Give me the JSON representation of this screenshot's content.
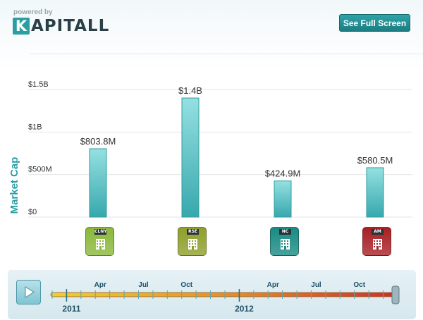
{
  "header": {
    "powered_by": "powered by",
    "logo_first": "K",
    "logo_rest": "APITALL",
    "fullscreen_button": "See Full Screen"
  },
  "chart_data": {
    "type": "bar",
    "ylabel": "Market Cap",
    "ylim": [
      0,
      1500000000
    ],
    "yticks": [
      {
        "value": 0,
        "label": "$0"
      },
      {
        "value": 500000000,
        "label": "$500M"
      },
      {
        "value": 1000000000,
        "label": "$1B"
      },
      {
        "value": 1500000000,
        "label": "$1.5B"
      }
    ],
    "grid": true,
    "series": [
      {
        "values": [
          803800000,
          1400000000,
          424900000,
          580500000
        ],
        "labels": [
          "$803.8M",
          "$1.4B",
          "$424.9M",
          "$580.5M"
        ]
      }
    ],
    "categories": [
      "CLNY",
      "RSE",
      "NC",
      "AM"
    ]
  },
  "companies": [
    {
      "ticker": "CLNY",
      "color": "#8ab83b",
      "icon": "building-icon"
    },
    {
      "ticker": "RSE",
      "color": "#8f9f2b",
      "icon": "building-icon"
    },
    {
      "ticker": "NC",
      "color": "#198b83",
      "icon": "building-icon"
    },
    {
      "ticker": "AM",
      "color": "#a82024",
      "icon": "building-icon"
    }
  ],
  "timeline": {
    "month_labels": [
      "Apr",
      "Jul",
      "Oct",
      "Apr",
      "Jul",
      "Oct"
    ],
    "year_labels": [
      "2011",
      "2012"
    ],
    "position": 1.0
  },
  "colors": {
    "accent": "#2a9ea3",
    "bar": "#5cc7ca"
  }
}
